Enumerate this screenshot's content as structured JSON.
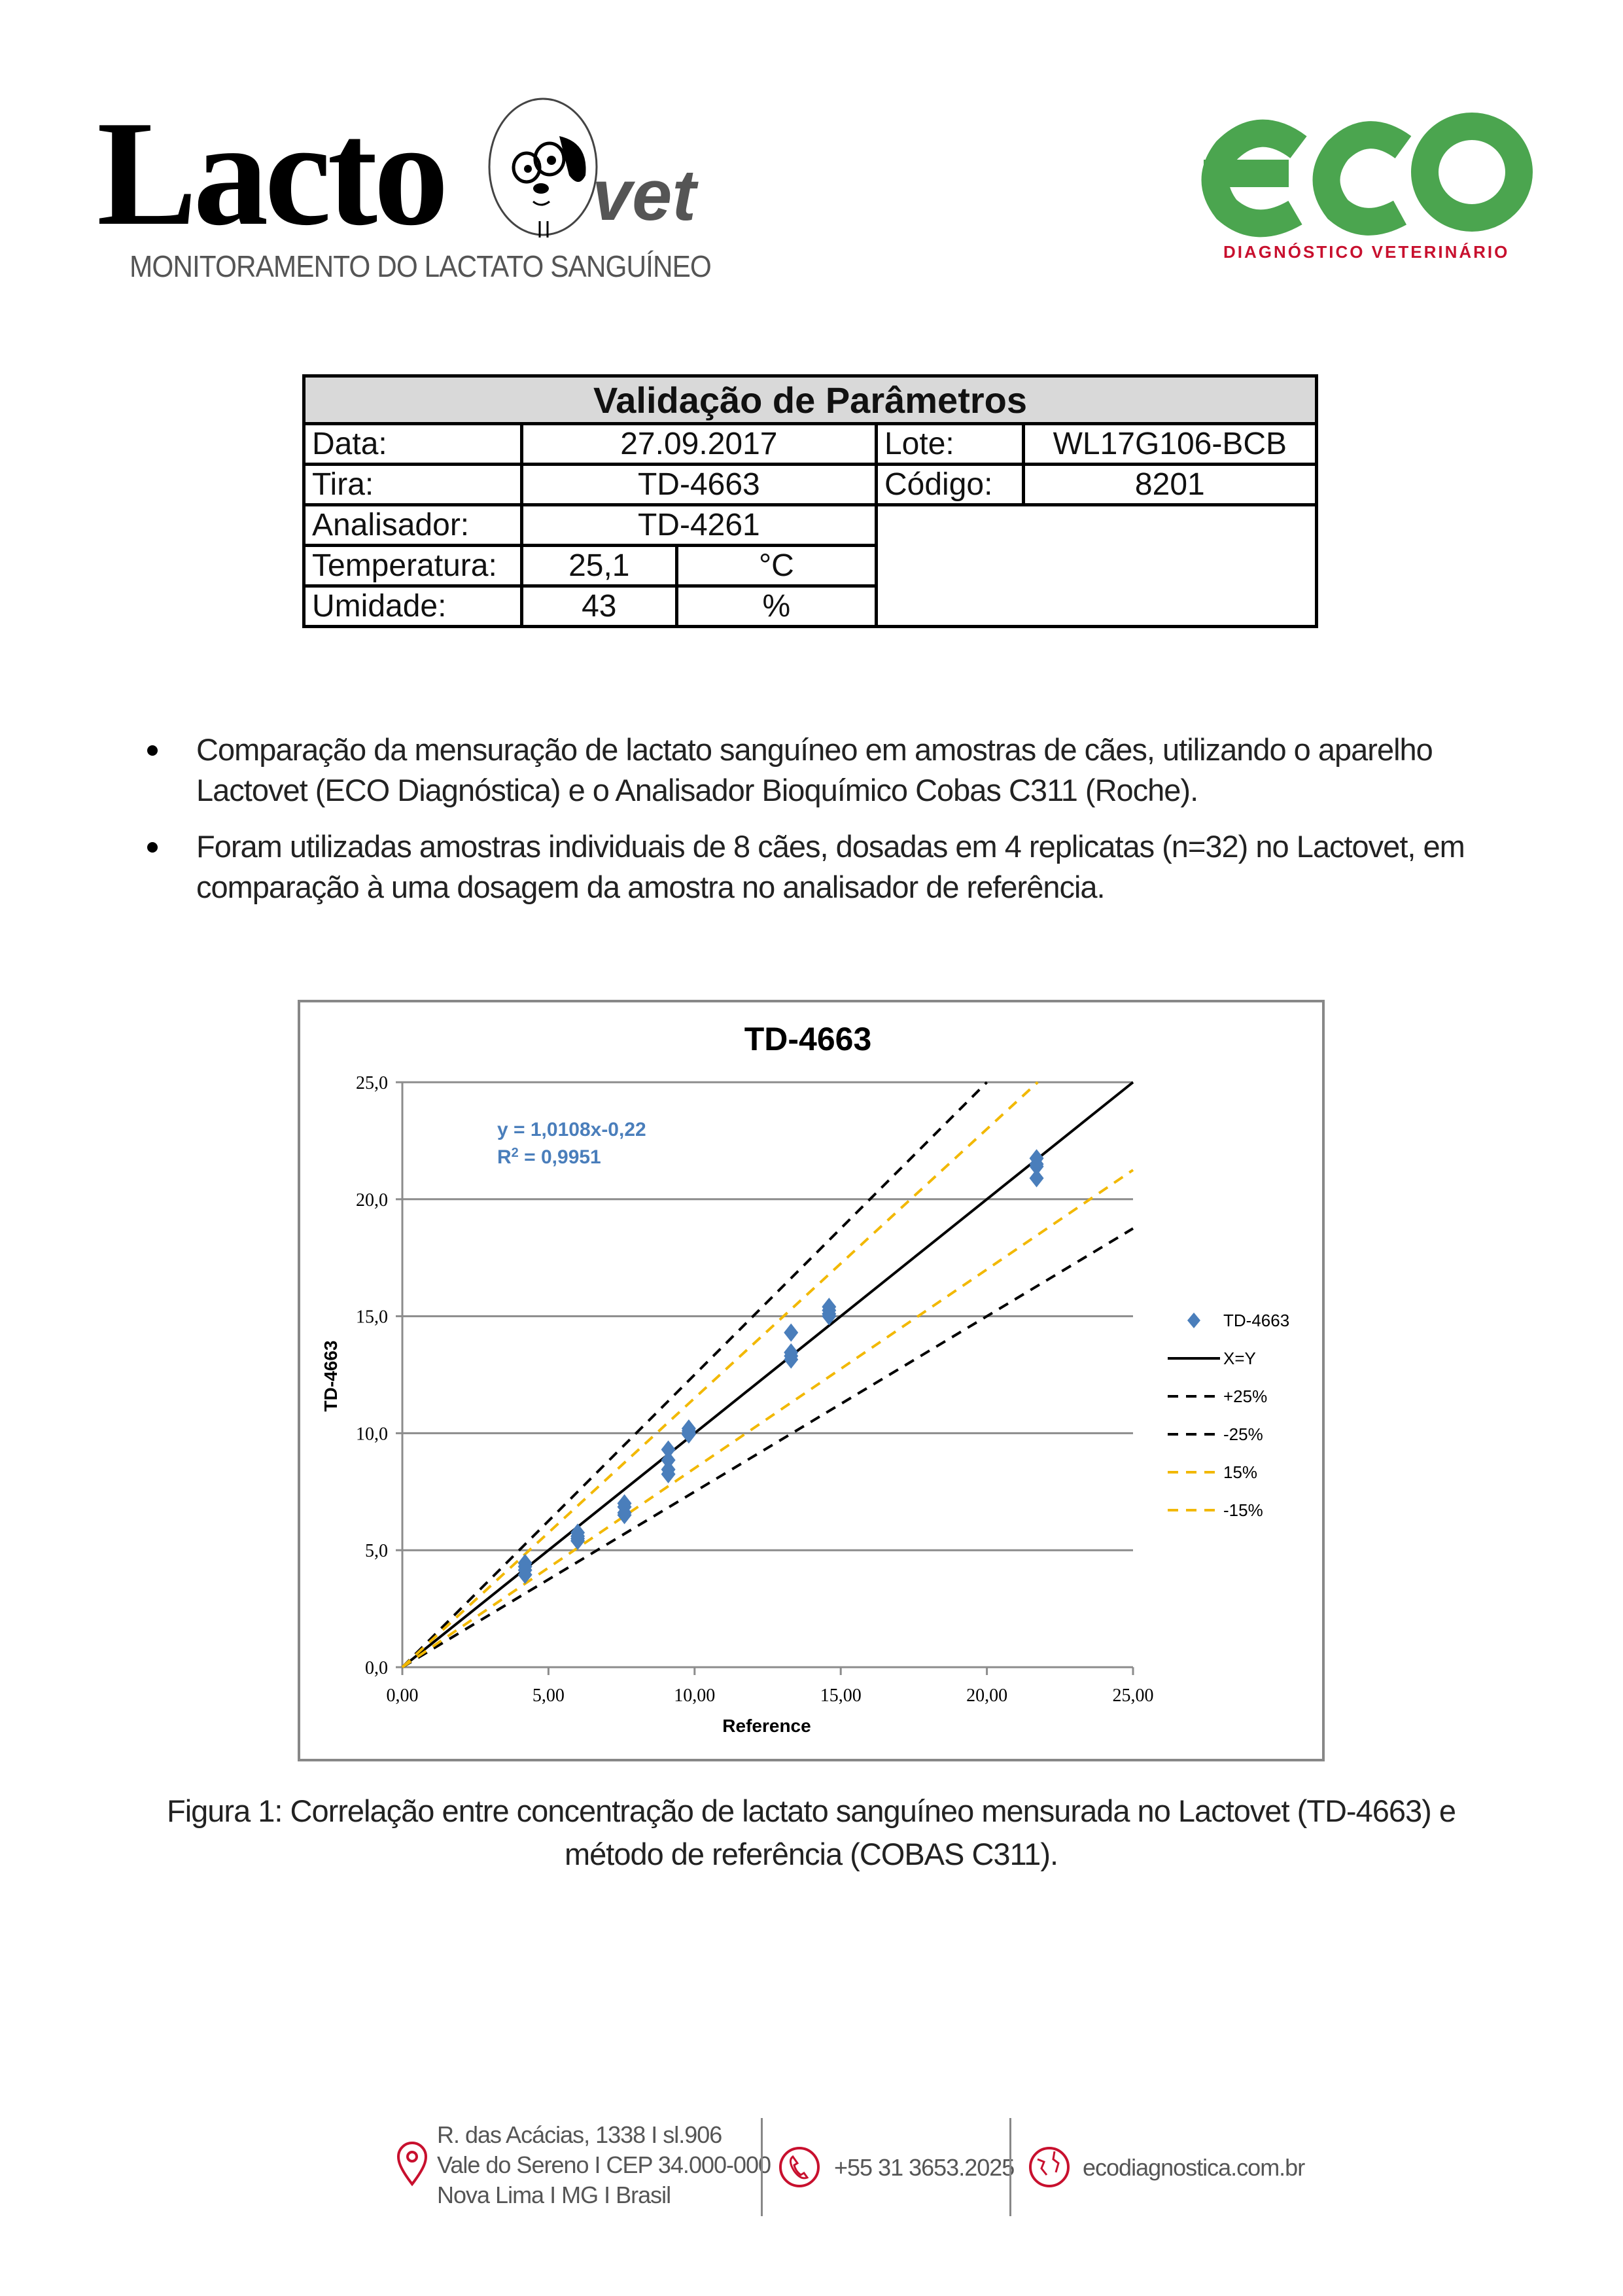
{
  "header": {
    "lacto_logo": "Lacto",
    "vet_logo": "vet",
    "lacto_tagline": "MONITORAMENTO DO LACTATO SANGUÍNEO",
    "eco_logo": "eco",
    "eco_tagline": "DIAGNÓSTICO VETERINÁRIO",
    "colors": {
      "eco_green": "#4ba54f",
      "eco_red": "#c8102e"
    }
  },
  "table": {
    "title": "Validação de Parâmetros",
    "rows": [
      {
        "label": "Data:",
        "value": "27.09.2017",
        "label2": "Lote:",
        "value2": "WL17G106-BCB"
      },
      {
        "label": "Tira:",
        "value": "TD-4663",
        "label2": "Código:",
        "value2": "8201"
      },
      {
        "label": "Analisador:",
        "value": "TD-4261"
      },
      {
        "label": "Temperatura:",
        "value": "25,1",
        "unit": "°C"
      },
      {
        "label": "Umidade:",
        "value": "43",
        "unit": "%"
      }
    ]
  },
  "bullets": [
    "Comparação da mensuração de lactato sanguíneo em amostras de cães, utilizando o aparelho Lactovet (ECO Diagnóstica) e o Analisador Bioquímico Cobas C311 (Roche).",
    "Foram utilizadas amostras individuais de 8 cães, dosadas em 4 replicatas (n=32) no Lactovet, em comparação à uma dosagem da amostra no analisador de referência."
  ],
  "chart_data": {
    "type": "scatter",
    "title": "TD-4663",
    "xlabel": "Reference",
    "ylabel": "TD-4663",
    "xlim": [
      0,
      25
    ],
    "ylim": [
      0,
      25
    ],
    "xticks": [
      "0,00",
      "5,00",
      "10,00",
      "15,00",
      "20,00",
      "25,00"
    ],
    "yticks": [
      "0,0",
      "5,0",
      "10,0",
      "15,0",
      "20,0",
      "25,0"
    ],
    "grid": "horizontal",
    "legend_position": "right",
    "equation": "y = 1,0108x-0,22",
    "r2_prefix": "R",
    "r2_sup": "2",
    "r2_value": " = 0,9951",
    "series": [
      {
        "name": "TD-4663",
        "kind": "points",
        "color": "#4a7ebb",
        "points": [
          [
            4.2,
            4.45
          ],
          [
            4.2,
            4.3
          ],
          [
            4.2,
            4.15
          ],
          [
            4.2,
            3.95
          ],
          [
            6.0,
            5.75
          ],
          [
            6.0,
            5.6
          ],
          [
            6.0,
            5.5
          ],
          [
            6.0,
            5.4
          ],
          [
            7.6,
            7.0
          ],
          [
            7.6,
            6.85
          ],
          [
            7.6,
            6.6
          ],
          [
            7.6,
            6.5
          ],
          [
            9.1,
            9.3
          ],
          [
            9.1,
            8.85
          ],
          [
            9.1,
            8.45
          ],
          [
            9.1,
            8.25
          ],
          [
            9.8,
            10.2
          ],
          [
            9.8,
            10.1
          ],
          [
            9.8,
            10.0
          ],
          [
            9.8,
            9.95
          ],
          [
            13.3,
            14.3
          ],
          [
            13.3,
            13.45
          ],
          [
            13.3,
            13.3
          ],
          [
            13.3,
            13.15
          ],
          [
            14.6,
            15.4
          ],
          [
            14.6,
            15.25
          ],
          [
            14.6,
            15.1
          ],
          [
            14.6,
            15.0
          ],
          [
            21.7,
            21.75
          ],
          [
            21.7,
            21.5
          ],
          [
            21.7,
            21.4
          ],
          [
            21.7,
            20.9
          ]
        ]
      },
      {
        "name": "X=Y",
        "kind": "line",
        "slope": 1,
        "color": "#000000",
        "dash": false
      },
      {
        "name": "+25%",
        "kind": "line",
        "slope": 1.25,
        "color": "#000000",
        "dash": true
      },
      {
        "name": "-25%",
        "kind": "line",
        "slope": 0.75,
        "color": "#000000",
        "dash": true
      },
      {
        "name": "15%",
        "kind": "line",
        "slope": 1.15,
        "color": "#f2b800",
        "dash": true
      },
      {
        "name": "-15%",
        "kind": "line",
        "slope": 0.85,
        "color": "#f2b800",
        "dash": true
      }
    ]
  },
  "caption": "Figura 1: Correlação entre concentração de lactato sanguíneo mensurada no Lactovet (TD-4663) e método de referência (COBAS C311).",
  "footer": {
    "address": [
      "R. das Acácias, 1338 I sl.906",
      "Vale do Sereno I CEP 34.000-000",
      "Nova Lima I MG I Brasil"
    ],
    "phone": "+55 31 3653.2025",
    "website": "ecodiagnostica.com.br",
    "icon_color": "#c8102e"
  }
}
